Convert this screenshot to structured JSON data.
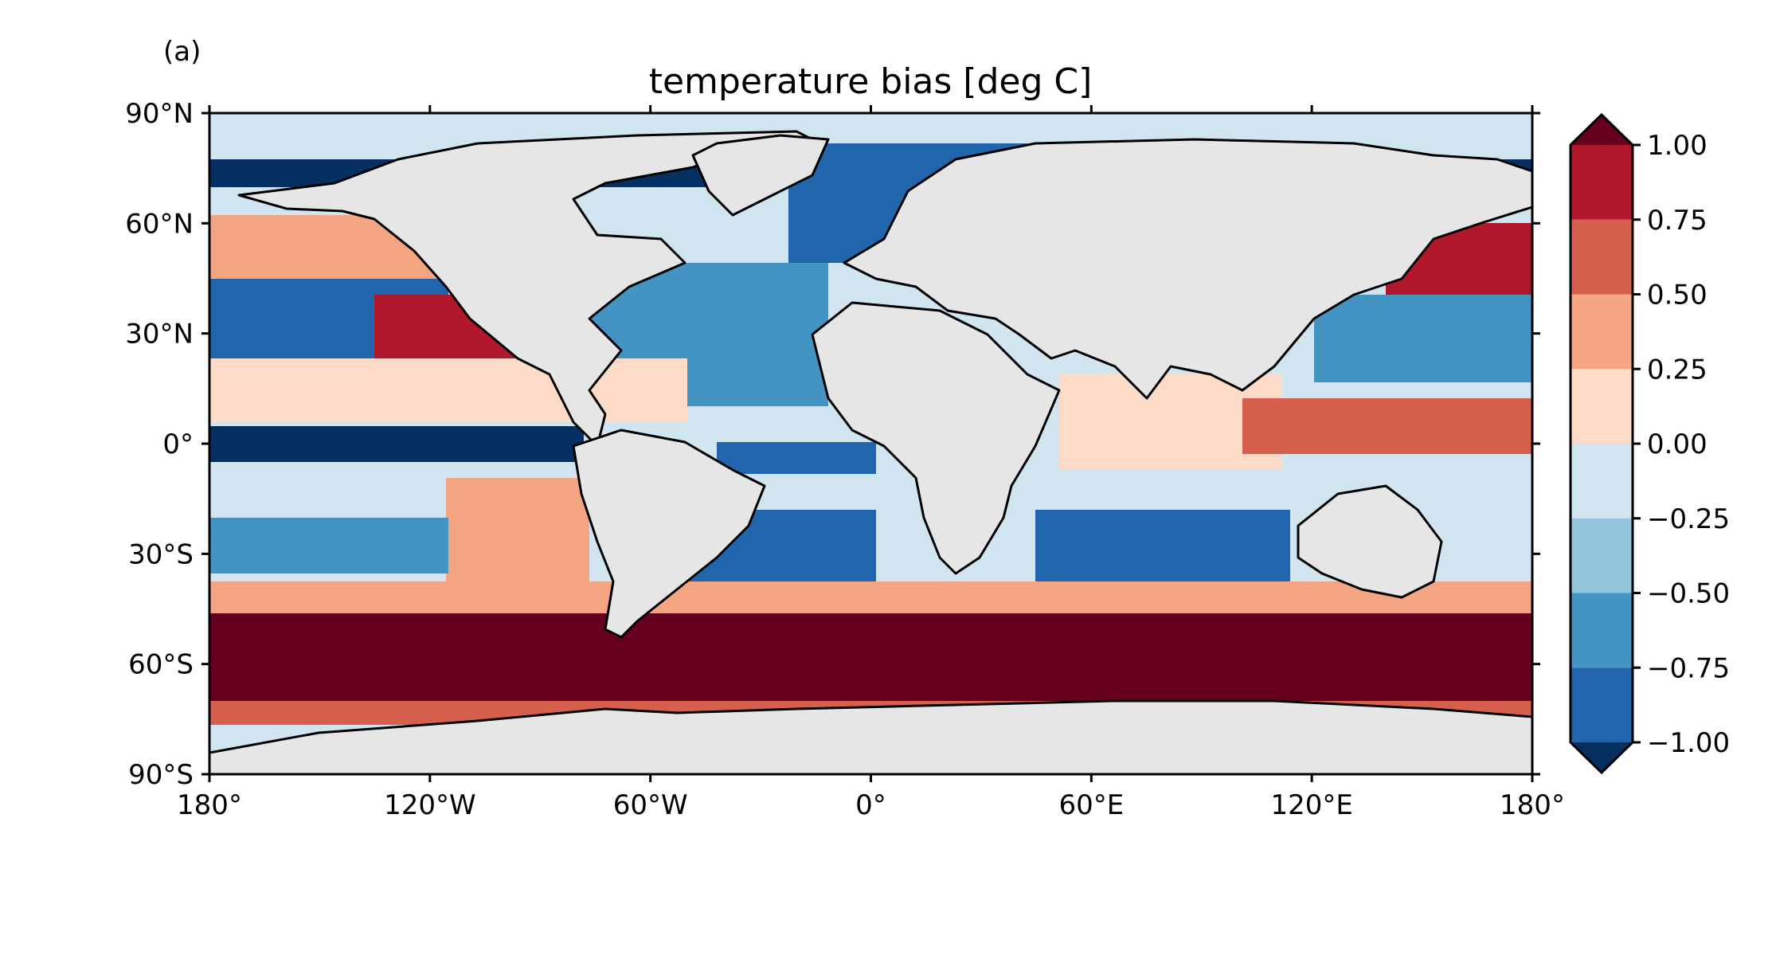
{
  "panel_label": "(a)",
  "title": "temperature bias [deg C]",
  "colors": {
    "land": "#e6e6e6",
    "coast": "#000000",
    "scale": [
      "#053061",
      "#2166ac",
      "#4393c3",
      "#92c5de",
      "#d1e5f0",
      "#fddbc7",
      "#f4a582",
      "#d6604d",
      "#b2182b",
      "#67001f"
    ]
  },
  "chart_data": {
    "type": "heatmap",
    "projection": "PlateCarree",
    "title": "temperature bias [deg C]",
    "xlim": [
      -180,
      180
    ],
    "ylim": [
      -90,
      90
    ],
    "x_ticks": [
      {
        "value": -180,
        "label": "180°"
      },
      {
        "value": -120,
        "label": "120°W"
      },
      {
        "value": -60,
        "label": "60°W"
      },
      {
        "value": 0,
        "label": "0°"
      },
      {
        "value": 60,
        "label": "60°E"
      },
      {
        "value": 120,
        "label": "120°E"
      },
      {
        "value": 180,
        "label": "180°"
      }
    ],
    "y_ticks": [
      {
        "value": 90,
        "label": "90°N"
      },
      {
        "value": 60,
        "label": "60°N"
      },
      {
        "value": 30,
        "label": "30°N"
      },
      {
        "value": 0,
        "label": "0°"
      },
      {
        "value": -30,
        "label": "30°S"
      },
      {
        "value": -60,
        "label": "60°S"
      },
      {
        "value": -90,
        "label": "90°S"
      }
    ],
    "colorbar": {
      "levels": [
        -1.0,
        -0.75,
        -0.5,
        -0.25,
        0.0,
        0.25,
        0.5,
        0.75,
        1.0
      ],
      "tick_labels": [
        "−1.00",
        "−0.75",
        "−0.50",
        "−0.25",
        "0.00",
        "0.25",
        "0.50",
        "0.75",
        "1.00"
      ],
      "extend": "both",
      "colormap": "RdBu_r"
    },
    "grid": false
  }
}
